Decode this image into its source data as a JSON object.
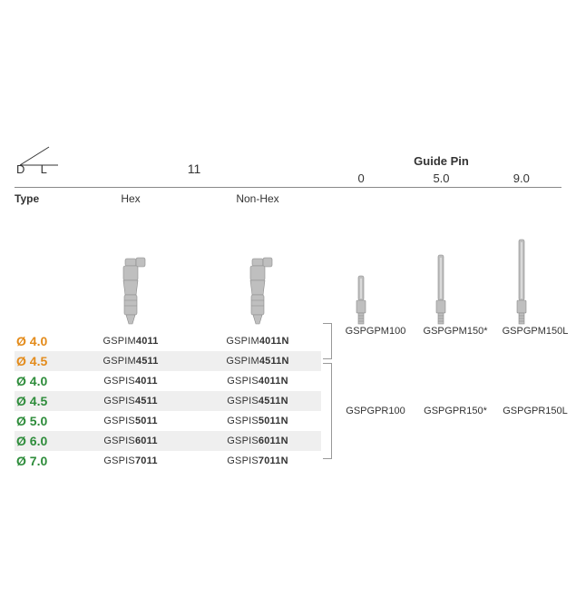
{
  "layout": {
    "leftWidth": 338,
    "diamColWidth": 58
  },
  "headers": {
    "D": "D",
    "L": "L",
    "size11": "11",
    "typeLabel": "Type",
    "hex": "Hex",
    "nonHex": "Non-Hex",
    "guidePin": "Guide Pin",
    "gp0": "0",
    "gp5": "5.0",
    "gp9": "9.0"
  },
  "colors": {
    "orange": "#e38b1b",
    "green": "#2e8c3b",
    "text": "#333333",
    "altRow": "#efefef",
    "rule": "#888888",
    "metal": "#bfbfbf",
    "metalDark": "#8a8a8a"
  },
  "leftRows": [
    {
      "diam": "Ø 4.0",
      "color": "orange",
      "hexPrefix": "GSPIM",
      "hexBold": "4011",
      "nonHexPrefix": "GSPIM",
      "nonHexBold": "4011N"
    },
    {
      "diam": "Ø 4.5",
      "color": "orange",
      "hexPrefix": "GSPIM",
      "hexBold": "4511",
      "nonHexPrefix": "GSPIM",
      "nonHexBold": "4511N"
    },
    {
      "diam": "Ø 4.0",
      "color": "green",
      "hexPrefix": "GSPIS",
      "hexBold": "4011",
      "nonHexPrefix": "GSPIS",
      "nonHexBold": "4011N"
    },
    {
      "diam": "Ø 4.5",
      "color": "green",
      "hexPrefix": "GSPIS",
      "hexBold": "4511",
      "nonHexPrefix": "GSPIS",
      "nonHexBold": "4511N"
    },
    {
      "diam": "Ø 5.0",
      "color": "green",
      "hexPrefix": "GSPIS",
      "hexBold": "5011",
      "nonHexPrefix": "GSPIS",
      "nonHexBold": "5011N"
    },
    {
      "diam": "Ø 6.0",
      "color": "green",
      "hexPrefix": "GSPIS",
      "hexBold": "6011",
      "nonHexPrefix": "GSPIS",
      "nonHexBold": "6011N"
    },
    {
      "diam": "Ø 7.0",
      "color": "green",
      "hexPrefix": "GSPIS",
      "hexBold": "7011",
      "nonHexPrefix": "GSPIS",
      "nonHexBold": "7011N"
    }
  ],
  "guidePinRowsM": [
    {
      "prefix": "GSPGPM",
      "bold": "100",
      "suffix": ""
    },
    {
      "prefix": "GSPGPM",
      "bold": "150",
      "suffix": "*"
    },
    {
      "prefix": "GSPGPM",
      "bold": "150L",
      "suffix": ""
    }
  ],
  "guidePinRowsR": [
    {
      "prefix": "GSPGPR",
      "bold": "100",
      "suffix": ""
    },
    {
      "prefix": "GSPGPR",
      "bold": "150",
      "suffix": "*"
    },
    {
      "prefix": "GSPGPR",
      "bold": "150L",
      "suffix": ""
    }
  ],
  "guidePinHeights": [
    55,
    78,
    95
  ]
}
